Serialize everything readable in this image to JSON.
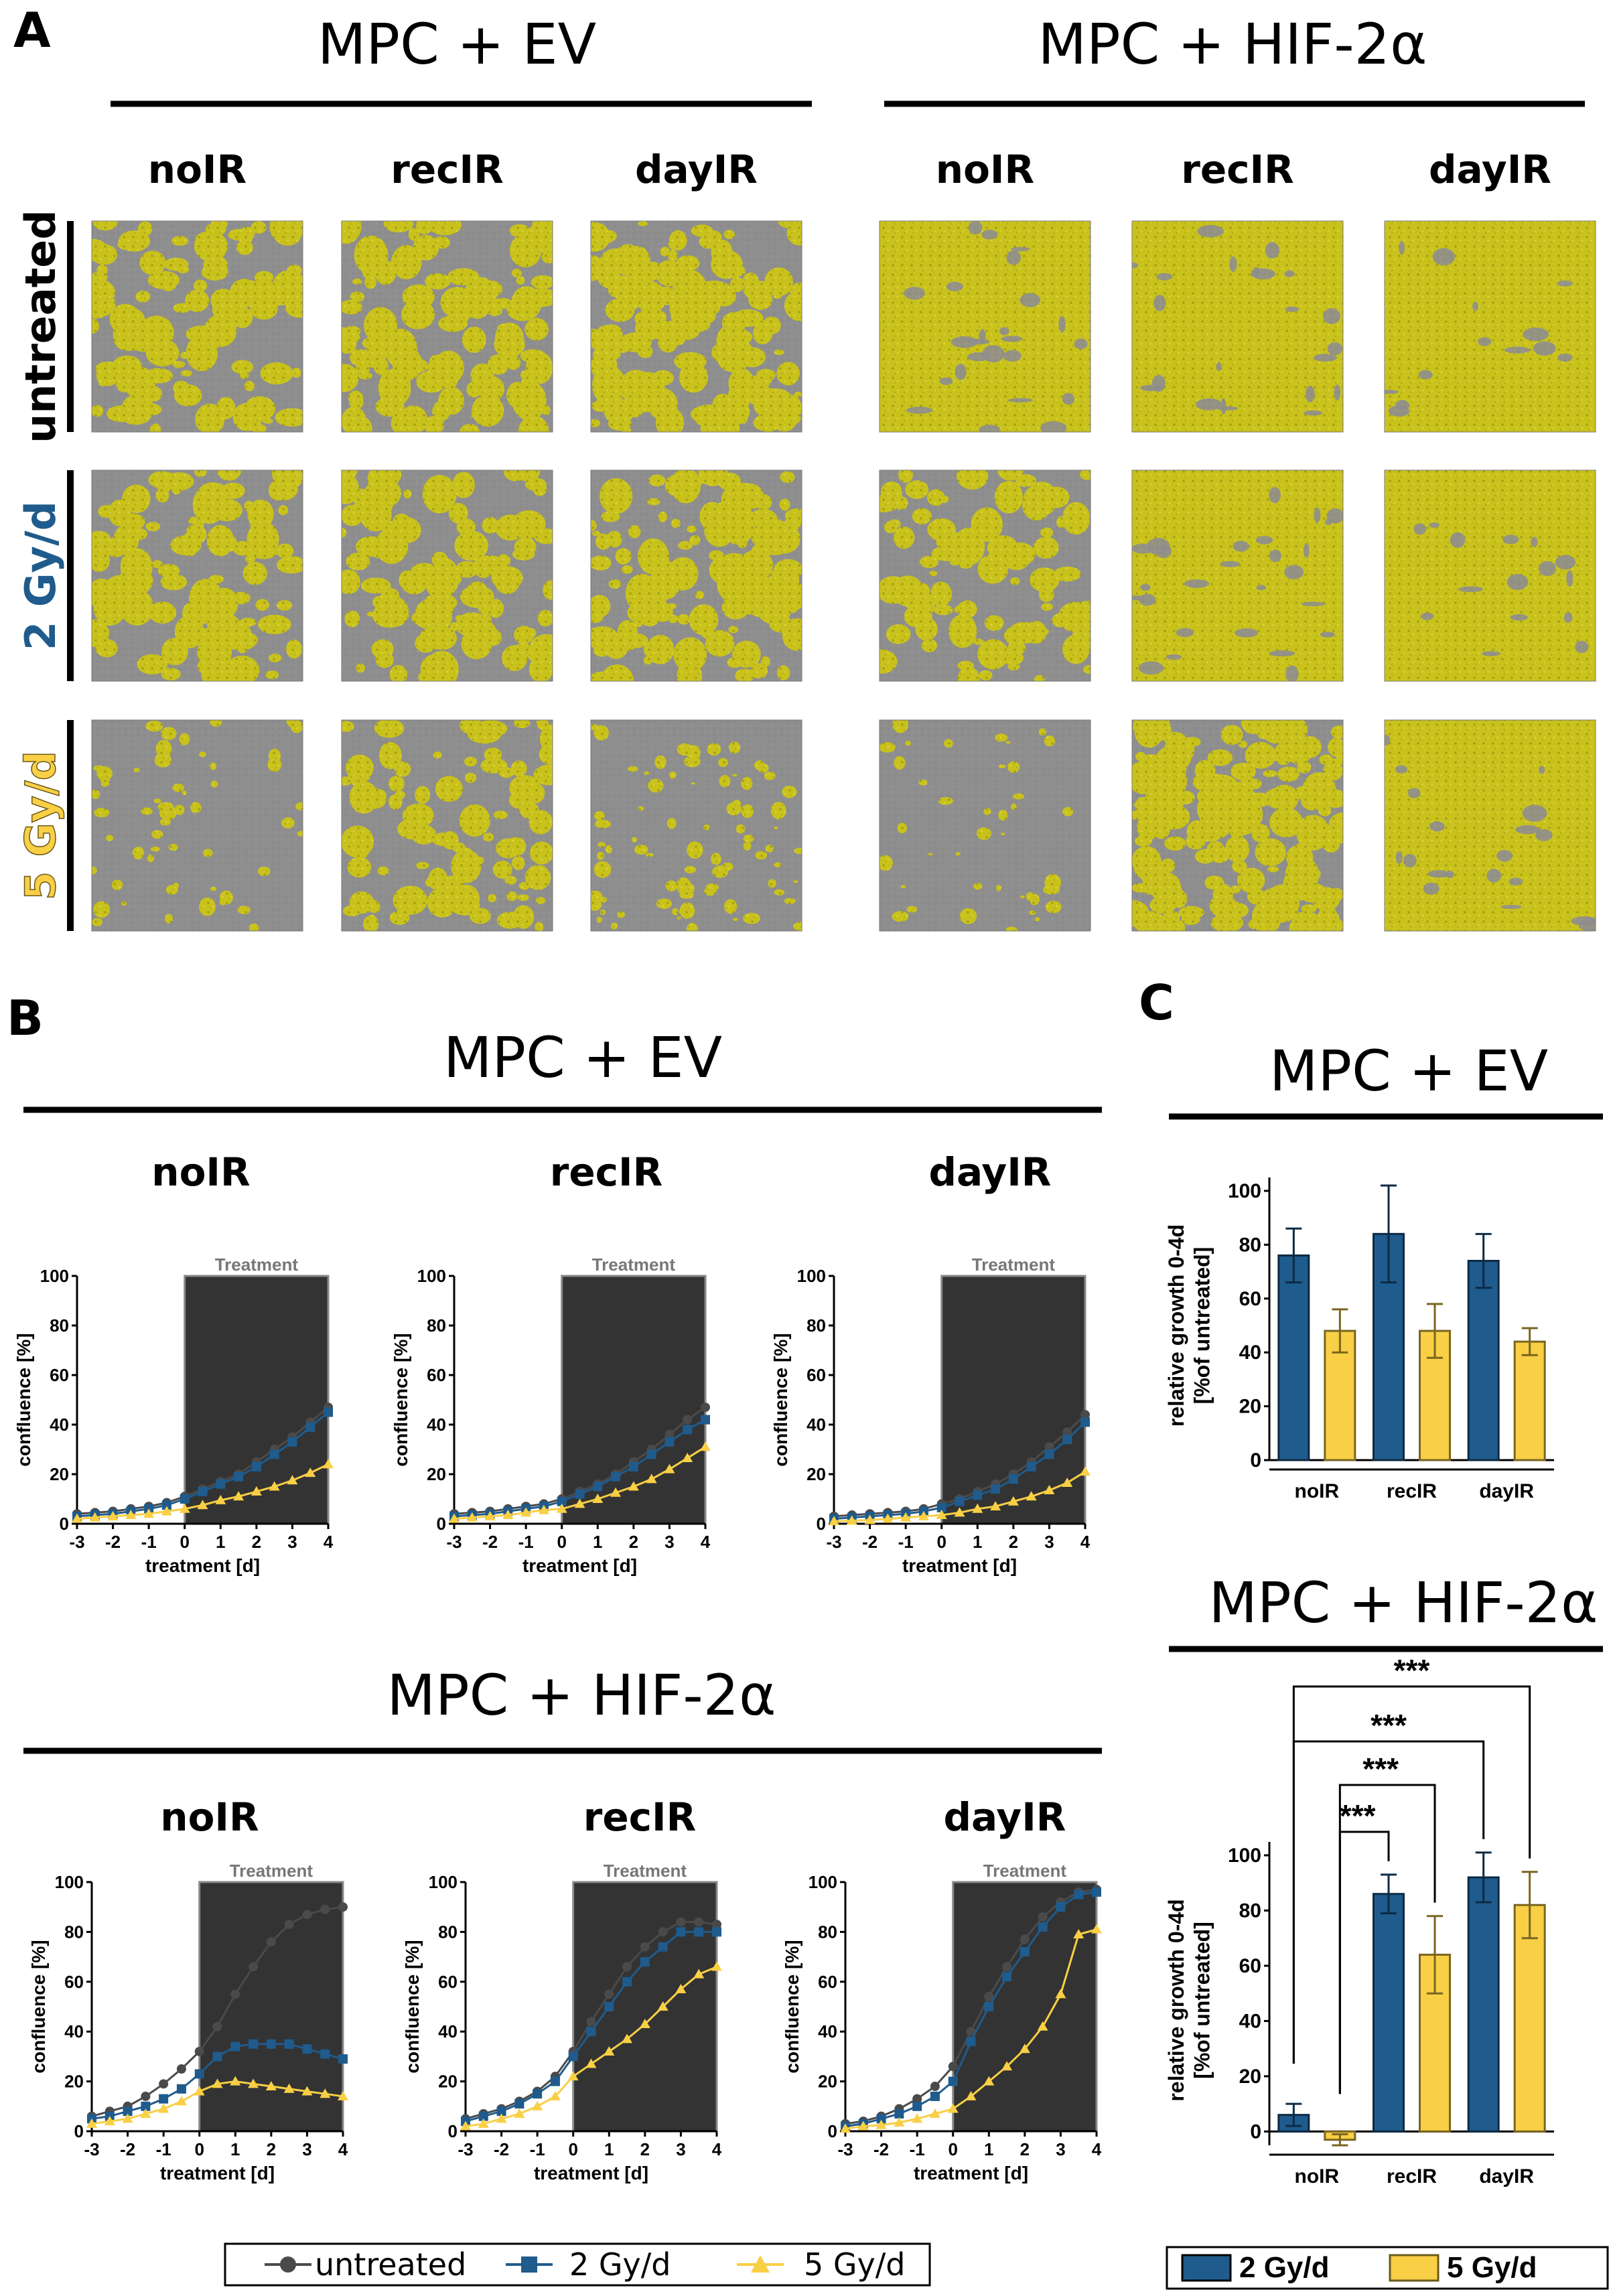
{
  "panels": {
    "A": "A",
    "B": "B",
    "C": "C"
  },
  "groups": {
    "ev": "MPC + EV",
    "hif": "MPC + HIF-2α"
  },
  "irradiation": [
    "noIR",
    "recIR",
    "dayIR"
  ],
  "rows": [
    "untreated",
    "2 Gy/d",
    "5 Gy/d"
  ],
  "colors": {
    "c2": "#1f5b8c",
    "c5": "#f9cf45",
    "untreated": "#4a4a4a",
    "micro_bg": "#8c8c8c",
    "micro_cell": "#c8c21a",
    "treat_bg": "#333333"
  },
  "treatment_label": "Treatment",
  "legend_b": {
    "untreated": "untreated",
    "g2": "2 Gy/d",
    "g5": "5 Gy/d"
  },
  "legend_c": {
    "g2": "2 Gy/d",
    "g5": "5 Gy/d"
  },
  "microscopy_coverage": {
    "ev": [
      [
        0.4,
        0.42,
        0.55
      ],
      [
        0.38,
        0.4,
        0.45
      ],
      [
        0.22,
        0.35,
        0.3
      ]
    ],
    "hif": [
      [
        0.82,
        0.85,
        0.95
      ],
      [
        0.35,
        0.8,
        0.92
      ],
      [
        0.15,
        0.7,
        0.88
      ]
    ]
  },
  "chart_data": [
    {
      "type": "line",
      "id": "B-EV-noIR",
      "title": "noIR",
      "xlabel": "treatment [d]",
      "ylabel": "confluence [%]",
      "xlim": [
        -3,
        4
      ],
      "ylim": [
        0,
        100
      ],
      "xticks": [
        "-3",
        "-2",
        "-1",
        "0",
        "1",
        "2",
        "3",
        "4"
      ],
      "yticks": [
        "0",
        "20",
        "40",
        "60",
        "80",
        "100"
      ],
      "treatment_window": [
        0,
        4
      ],
      "x": [
        -3,
        -2.5,
        -2,
        -1.5,
        -1,
        -0.5,
        0,
        0.5,
        1,
        1.5,
        2,
        2.5,
        3,
        3.5,
        4
      ],
      "series": [
        {
          "name": "untreated",
          "values": [
            4,
            4.5,
            5,
            6,
            7,
            8.5,
            11,
            14,
            17,
            20,
            25,
            30,
            35,
            41,
            47
          ]
        },
        {
          "name": "2 Gy/d",
          "values": [
            3,
            3.5,
            4,
            5,
            6,
            7.5,
            10,
            13,
            16,
            19,
            23,
            28,
            33,
            39,
            45
          ]
        },
        {
          "name": "5 Gy/d",
          "values": [
            2,
            2.5,
            3,
            3.5,
            4,
            5,
            6,
            7.5,
            9.5,
            11,
            13,
            15,
            17.5,
            20.5,
            24
          ]
        }
      ]
    },
    {
      "type": "line",
      "id": "B-EV-recIR",
      "title": "recIR",
      "xlabel": "treatment [d]",
      "ylabel": "confluence [%]",
      "xlim": [
        -3,
        4
      ],
      "ylim": [
        0,
        100
      ],
      "xticks": [
        "-3",
        "-2",
        "-1",
        "0",
        "1",
        "2",
        "3",
        "4"
      ],
      "yticks": [
        "0",
        "20",
        "40",
        "60",
        "80",
        "100"
      ],
      "treatment_window": [
        0,
        4
      ],
      "x": [
        -3,
        -2.5,
        -2,
        -1.5,
        -1,
        -0.5,
        0,
        0.5,
        1,
        1.5,
        2,
        2.5,
        3,
        3.5,
        4
      ],
      "series": [
        {
          "name": "untreated",
          "values": [
            4,
            4.5,
            5,
            6,
            7,
            8,
            10,
            13,
            16,
            20,
            25,
            30,
            36,
            42,
            47
          ]
        },
        {
          "name": "2 Gy/d",
          "values": [
            3,
            3.5,
            4,
            5,
            6,
            7,
            9,
            12,
            15,
            19,
            23,
            28,
            33,
            38,
            42
          ]
        },
        {
          "name": "5 Gy/d",
          "values": [
            2,
            2.5,
            3,
            3.5,
            4.5,
            5.5,
            6,
            8,
            10,
            12.5,
            15,
            18,
            22,
            26.5,
            31
          ]
        }
      ]
    },
    {
      "type": "line",
      "id": "B-EV-dayIR",
      "title": "dayIR",
      "xlabel": "treatment [d]",
      "ylabel": "confluence [%]",
      "xlim": [
        -3,
        4
      ],
      "ylim": [
        0,
        100
      ],
      "xticks": [
        "-3",
        "-2",
        "-1",
        "0",
        "1",
        "2",
        "3",
        "4"
      ],
      "yticks": [
        "0",
        "20",
        "40",
        "60",
        "80",
        "100"
      ],
      "treatment_window": [
        0,
        4
      ],
      "x": [
        -3,
        -2.5,
        -2,
        -1.5,
        -1,
        -0.5,
        0,
        0.5,
        1,
        1.5,
        2,
        2.5,
        3,
        3.5,
        4
      ],
      "series": [
        {
          "name": "untreated",
          "values": [
            3,
            3.5,
            4,
            4.5,
            5,
            6,
            8,
            10,
            13,
            16,
            20,
            25,
            31,
            37,
            44
          ]
        },
        {
          "name": "2 Gy/d",
          "values": [
            2,
            2.5,
            3,
            3.5,
            4,
            5,
            6.5,
            9,
            11.5,
            14,
            18,
            23,
            28,
            34,
            41
          ]
        },
        {
          "name": "5 Gy/d",
          "values": [
            1,
            1.2,
            1.5,
            2,
            2.5,
            3,
            3.5,
            4.5,
            6,
            7,
            9,
            11,
            13.5,
            16.5,
            21
          ]
        }
      ]
    },
    {
      "type": "line",
      "id": "B-HIF-noIR",
      "title": "noIR",
      "xlabel": "treatment [d]",
      "ylabel": "confluence [%]",
      "xlim": [
        -3,
        4
      ],
      "ylim": [
        0,
        100
      ],
      "xticks": [
        "-3",
        "-2",
        "-1",
        "0",
        "1",
        "2",
        "3",
        "4"
      ],
      "yticks": [
        "0",
        "20",
        "40",
        "60",
        "80",
        "100"
      ],
      "treatment_window": [
        0,
        4
      ],
      "x": [
        -3,
        -2.5,
        -2,
        -1.5,
        -1,
        -0.5,
        0,
        0.5,
        1,
        1.5,
        2,
        2.5,
        3,
        3.5,
        4
      ],
      "series": [
        {
          "name": "untreated",
          "values": [
            6,
            8,
            10,
            14,
            19,
            25,
            32,
            42,
            55,
            66,
            76,
            83,
            87,
            89,
            90
          ]
        },
        {
          "name": "2 Gy/d",
          "values": [
            5,
            6,
            8,
            10,
            13,
            17,
            23,
            30,
            34,
            35,
            35,
            35,
            33,
            31,
            29
          ]
        },
        {
          "name": "5 Gy/d",
          "values": [
            3,
            4,
            5,
            7,
            9,
            12,
            16,
            19,
            20,
            19,
            18,
            17,
            16,
            15,
            14
          ]
        }
      ]
    },
    {
      "type": "line",
      "id": "B-HIF-recIR",
      "title": "recIR",
      "xlabel": "treatment [d]",
      "ylabel": "confluence [%]",
      "xlim": [
        -3,
        4
      ],
      "ylim": [
        0,
        100
      ],
      "xticks": [
        "-3",
        "-2",
        "-1",
        "0",
        "1",
        "2",
        "3",
        "4"
      ],
      "yticks": [
        "0",
        "20",
        "40",
        "60",
        "80",
        "100"
      ],
      "treatment_window": [
        0,
        4
      ],
      "x": [
        -3,
        -2.5,
        -2,
        -1.5,
        -1,
        -0.5,
        0,
        0.5,
        1,
        1.5,
        2,
        2.5,
        3,
        3.5,
        4
      ],
      "series": [
        {
          "name": "untreated",
          "values": [
            5,
            7,
            9,
            12,
            16,
            22,
            32,
            44,
            55,
            66,
            74,
            80,
            84,
            84,
            83
          ]
        },
        {
          "name": "2 Gy/d",
          "values": [
            4,
            6,
            8,
            11,
            15,
            20,
            30,
            40,
            50,
            60,
            68,
            74,
            80,
            80,
            80
          ]
        },
        {
          "name": "5 Gy/d",
          "values": [
            2,
            3,
            5,
            7,
            10,
            14,
            22,
            27,
            32,
            37,
            43,
            50,
            57,
            63,
            66
          ]
        }
      ]
    },
    {
      "type": "line",
      "id": "B-HIF-dayIR",
      "title": "dayIR",
      "xlabel": "treatment [d]",
      "ylabel": "confluence [%]",
      "xlim": [
        -3,
        4
      ],
      "ylim": [
        0,
        100
      ],
      "xticks": [
        "-3",
        "-2",
        "-1",
        "0",
        "1",
        "2",
        "3",
        "4"
      ],
      "yticks": [
        "0",
        "20",
        "40",
        "60",
        "80",
        "100"
      ],
      "treatment_window": [
        0,
        4
      ],
      "x": [
        -3,
        -2.5,
        -2,
        -1.5,
        -1,
        -0.5,
        0,
        0.5,
        1,
        1.5,
        2,
        2.5,
        3,
        3.5,
        4
      ],
      "series": [
        {
          "name": "untreated",
          "values": [
            3,
            4,
            6,
            9,
            13,
            18,
            26,
            40,
            54,
            66,
            77,
            86,
            92,
            96,
            97
          ]
        },
        {
          "name": "2 Gy/d",
          "values": [
            2,
            3,
            5,
            7,
            10,
            14,
            20,
            36,
            50,
            62,
            72,
            82,
            90,
            95,
            96
          ]
        },
        {
          "name": "5 Gy/d",
          "values": [
            1,
            2,
            2.5,
            3.5,
            5,
            7,
            9,
            14,
            20,
            26,
            33,
            42,
            55,
            79,
            81
          ]
        }
      ]
    },
    {
      "type": "bar",
      "id": "C-EV",
      "title": "MPC + EV",
      "categories": [
        "noIR",
        "recIR",
        "dayIR"
      ],
      "ylabel": "relative growth 0-4d [%of untreated]",
      "ylim": [
        0,
        100
      ],
      "yticks": [
        "0",
        "20",
        "40",
        "60",
        "80",
        "100"
      ],
      "series": [
        {
          "name": "2 Gy/d",
          "values": [
            76,
            84,
            74
          ],
          "errors": [
            10,
            18,
            10
          ]
        },
        {
          "name": "5 Gy/d",
          "values": [
            48,
            48,
            44
          ],
          "errors": [
            8,
            10,
            5
          ]
        }
      ]
    },
    {
      "type": "bar",
      "id": "C-HIF",
      "title": "MPC + HIF-2α",
      "categories": [
        "noIR",
        "recIR",
        "dayIR"
      ],
      "ylabel": "relative growth 0-4d [%of untreated]",
      "ylim": [
        -5,
        100
      ],
      "yticks": [
        "0",
        "20",
        "40",
        "60",
        "80",
        "100"
      ],
      "series": [
        {
          "name": "2 Gy/d",
          "values": [
            6,
            86,
            92
          ],
          "errors": [
            4,
            7,
            9
          ]
        },
        {
          "name": "5 Gy/d",
          "values": [
            -3,
            64,
            82
          ],
          "errors": [
            2,
            14,
            12
          ]
        }
      ],
      "significance": [
        {
          "from": "noIR 2 Gy/d",
          "to": "dayIR 5 Gy/d",
          "label": "***"
        },
        {
          "from": "noIR 2 Gy/d",
          "to": "dayIR 2 Gy/d",
          "label": "***"
        },
        {
          "from": "noIR 5 Gy/d",
          "to": "recIR 5 Gy/d",
          "label": "***"
        },
        {
          "from": "noIR 5 Gy/d",
          "to": "recIR 2 Gy/d",
          "label": "***"
        }
      ]
    }
  ]
}
